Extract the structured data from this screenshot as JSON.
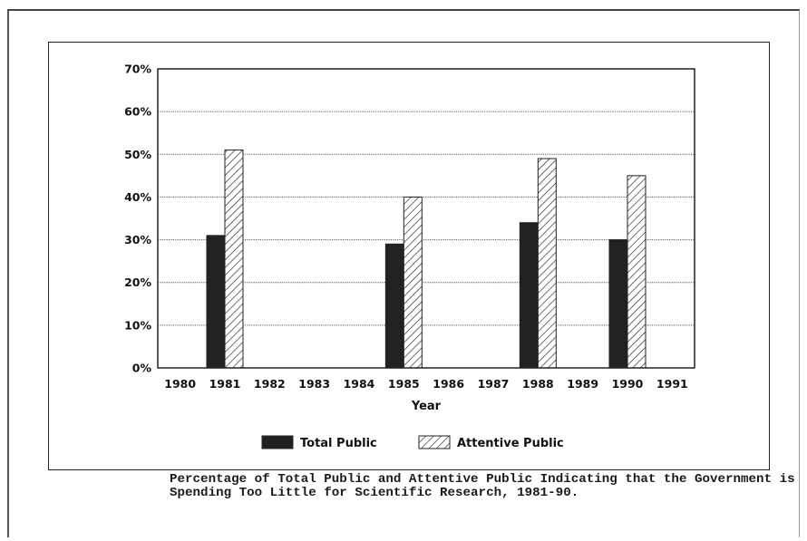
{
  "caption": "Percentage of Total Public and Attentive Public Indicating that the Government is Spending Too Little for Scientific Research, 1981-90.",
  "chart_data": {
    "type": "bar",
    "categories": [
      "1980",
      "1981",
      "1982",
      "1983",
      "1984",
      "1985",
      "1986",
      "1987",
      "1988",
      "1989",
      "1990",
      "1991"
    ],
    "series": [
      {
        "name": "Total Public",
        "values": [
          null,
          31,
          null,
          null,
          null,
          29,
          null,
          null,
          34,
          null,
          30,
          null
        ],
        "color": "#222222",
        "fill": "solid"
      },
      {
        "name": "Attentive Public",
        "values": [
          null,
          51,
          null,
          null,
          null,
          40,
          null,
          null,
          49,
          null,
          45,
          null
        ],
        "color": "#222222",
        "fill": "hatched"
      }
    ],
    "title": "",
    "xlabel": "Year",
    "ylabel": "",
    "ylim": [
      0,
      70
    ],
    "yticks": [
      "0%",
      "10%",
      "20%",
      "30%",
      "40%",
      "50%",
      "60%",
      "70%"
    ],
    "ytick_values": [
      0,
      10,
      20,
      30,
      40,
      50,
      60,
      70
    ],
    "grid": true,
    "legend": "bottom-center"
  }
}
